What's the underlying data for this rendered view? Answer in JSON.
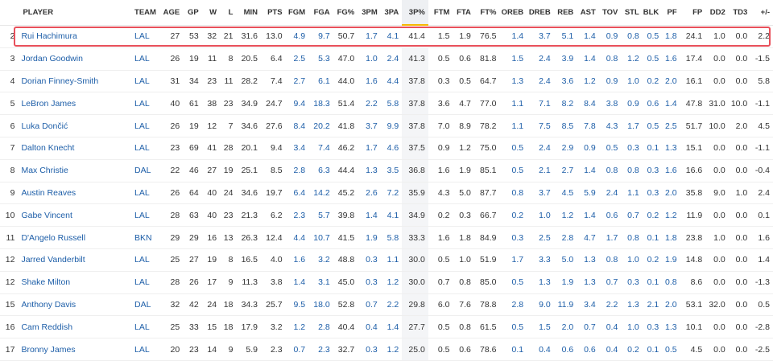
{
  "headers": [
    "",
    "PLAYER",
    "TEAM",
    "AGE",
    "GP",
    "W",
    "L",
    "MIN",
    "PTS",
    "FGM",
    "FGA",
    "FG%",
    "3PM",
    "3PA",
    "3P%",
    "FTM",
    "FTA",
    "FT%",
    "OREB",
    "DREB",
    "REB",
    "AST",
    "TOV",
    "STL",
    "BLK",
    "PF",
    "FP",
    "DD2",
    "TD3",
    "+/-"
  ],
  "sorted_column": "3P%",
  "highlight_color": "#e8505b",
  "sort_accent_color": "#f5b700",
  "link_color": "#1d5ea8",
  "rows": [
    [
      "2",
      "Rui Hachimura",
      "LAL",
      "27",
      "53",
      "32",
      "21",
      "31.6",
      "13.0",
      "4.9",
      "9.7",
      "50.7",
      "1.7",
      "4.1",
      "41.4",
      "1.5",
      "1.9",
      "76.5",
      "1.4",
      "3.7",
      "5.1",
      "1.4",
      "0.9",
      "0.8",
      "0.5",
      "1.8",
      "24.1",
      "1.0",
      "0.0",
      "2.2"
    ],
    [
      "3",
      "Jordan Goodwin",
      "LAL",
      "26",
      "19",
      "11",
      "8",
      "20.5",
      "6.4",
      "2.5",
      "5.3",
      "47.0",
      "1.0",
      "2.4",
      "41.3",
      "0.5",
      "0.6",
      "81.8",
      "1.5",
      "2.4",
      "3.9",
      "1.4",
      "0.8",
      "1.2",
      "0.5",
      "1.6",
      "17.4",
      "0.0",
      "0.0",
      "-1.5"
    ],
    [
      "4",
      "Dorian Finney-Smith",
      "LAL",
      "31",
      "34",
      "23",
      "11",
      "28.2",
      "7.4",
      "2.7",
      "6.1",
      "44.0",
      "1.6",
      "4.4",
      "37.8",
      "0.3",
      "0.5",
      "64.7",
      "1.3",
      "2.4",
      "3.6",
      "1.2",
      "0.9",
      "1.0",
      "0.2",
      "2.0",
      "16.1",
      "0.0",
      "0.0",
      "5.8"
    ],
    [
      "5",
      "LeBron James",
      "LAL",
      "40",
      "61",
      "38",
      "23",
      "34.9",
      "24.7",
      "9.4",
      "18.3",
      "51.4",
      "2.2",
      "5.8",
      "37.8",
      "3.6",
      "4.7",
      "77.0",
      "1.1",
      "7.1",
      "8.2",
      "8.4",
      "3.8",
      "0.9",
      "0.6",
      "1.4",
      "47.8",
      "31.0",
      "10.0",
      "-1.1"
    ],
    [
      "6",
      "Luka Dončić",
      "LAL",
      "26",
      "19",
      "12",
      "7",
      "34.6",
      "27.6",
      "8.4",
      "20.2",
      "41.8",
      "3.7",
      "9.9",
      "37.8",
      "7.0",
      "8.9",
      "78.2",
      "1.1",
      "7.5",
      "8.5",
      "7.8",
      "4.3",
      "1.7",
      "0.5",
      "2.5",
      "51.7",
      "10.0",
      "2.0",
      "4.5"
    ],
    [
      "7",
      "Dalton Knecht",
      "LAL",
      "23",
      "69",
      "41",
      "28",
      "20.1",
      "9.4",
      "3.4",
      "7.4",
      "46.2",
      "1.7",
      "4.6",
      "37.5",
      "0.9",
      "1.2",
      "75.0",
      "0.5",
      "2.4",
      "2.9",
      "0.9",
      "0.5",
      "0.3",
      "0.1",
      "1.3",
      "15.1",
      "0.0",
      "0.0",
      "-1.1"
    ],
    [
      "8",
      "Max Christie",
      "DAL",
      "22",
      "46",
      "27",
      "19",
      "25.1",
      "8.5",
      "2.8",
      "6.3",
      "44.4",
      "1.3",
      "3.5",
      "36.8",
      "1.6",
      "1.9",
      "85.1",
      "0.5",
      "2.1",
      "2.7",
      "1.4",
      "0.8",
      "0.8",
      "0.3",
      "1.6",
      "16.6",
      "0.0",
      "0.0",
      "-0.4"
    ],
    [
      "9",
      "Austin Reaves",
      "LAL",
      "26",
      "64",
      "40",
      "24",
      "34.6",
      "19.7",
      "6.4",
      "14.2",
      "45.2",
      "2.6",
      "7.2",
      "35.9",
      "4.3",
      "5.0",
      "87.7",
      "0.8",
      "3.7",
      "4.5",
      "5.9",
      "2.4",
      "1.1",
      "0.3",
      "2.0",
      "35.8",
      "9.0",
      "1.0",
      "2.4"
    ],
    [
      "10",
      "Gabe Vincent",
      "LAL",
      "28",
      "63",
      "40",
      "23",
      "21.3",
      "6.2",
      "2.3",
      "5.7",
      "39.8",
      "1.4",
      "4.1",
      "34.9",
      "0.2",
      "0.3",
      "66.7",
      "0.2",
      "1.0",
      "1.2",
      "1.4",
      "0.6",
      "0.7",
      "0.2",
      "1.2",
      "11.9",
      "0.0",
      "0.0",
      "0.1"
    ],
    [
      "11",
      "D'Angelo Russell",
      "BKN",
      "29",
      "29",
      "16",
      "13",
      "26.3",
      "12.4",
      "4.4",
      "10.7",
      "41.5",
      "1.9",
      "5.8",
      "33.3",
      "1.6",
      "1.8",
      "84.9",
      "0.3",
      "2.5",
      "2.8",
      "4.7",
      "1.7",
      "0.8",
      "0.1",
      "1.8",
      "23.8",
      "1.0",
      "0.0",
      "1.6"
    ],
    [
      "12",
      "Jarred Vanderbilt",
      "LAL",
      "25",
      "27",
      "19",
      "8",
      "16.5",
      "4.0",
      "1.6",
      "3.2",
      "48.8",
      "0.3",
      "1.1",
      "30.0",
      "0.5",
      "1.0",
      "51.9",
      "1.7",
      "3.3",
      "5.0",
      "1.3",
      "0.8",
      "1.0",
      "0.2",
      "1.9",
      "14.8",
      "0.0",
      "0.0",
      "1.4"
    ],
    [
      "12",
      "Shake Milton",
      "LAL",
      "28",
      "26",
      "17",
      "9",
      "11.3",
      "3.8",
      "1.4",
      "3.1",
      "45.0",
      "0.3",
      "1.2",
      "30.0",
      "0.7",
      "0.8",
      "85.0",
      "0.5",
      "1.3",
      "1.9",
      "1.3",
      "0.7",
      "0.3",
      "0.1",
      "0.8",
      "8.6",
      "0.0",
      "0.0",
      "-1.3"
    ],
    [
      "15",
      "Anthony Davis",
      "DAL",
      "32",
      "42",
      "24",
      "18",
      "34.3",
      "25.7",
      "9.5",
      "18.0",
      "52.8",
      "0.7",
      "2.2",
      "29.8",
      "6.0",
      "7.6",
      "78.8",
      "2.8",
      "9.0",
      "11.9",
      "3.4",
      "2.2",
      "1.3",
      "2.1",
      "2.0",
      "53.1",
      "32.0",
      "0.0",
      "0.5"
    ],
    [
      "16",
      "Cam Reddish",
      "LAL",
      "25",
      "33",
      "15",
      "18",
      "17.9",
      "3.2",
      "1.2",
      "2.8",
      "40.4",
      "0.4",
      "1.4",
      "27.7",
      "0.5",
      "0.8",
      "61.5",
      "0.5",
      "1.5",
      "2.0",
      "0.7",
      "0.4",
      "1.0",
      "0.3",
      "1.3",
      "10.1",
      "0.0",
      "0.0",
      "-2.8"
    ],
    [
      "17",
      "Bronny James",
      "LAL",
      "20",
      "23",
      "14",
      "9",
      "5.9",
      "2.3",
      "0.7",
      "2.3",
      "32.7",
      "0.3",
      "1.2",
      "25.0",
      "0.5",
      "0.6",
      "78.6",
      "0.1",
      "0.4",
      "0.6",
      "0.6",
      "0.4",
      "0.2",
      "0.1",
      "0.5",
      "4.5",
      "0.0",
      "0.0",
      "-2.5"
    ]
  ]
}
